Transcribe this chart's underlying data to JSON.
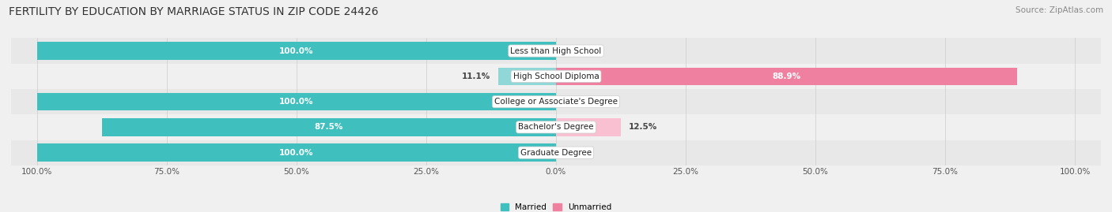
{
  "title": "FERTILITY BY EDUCATION BY MARRIAGE STATUS IN ZIP CODE 24426",
  "source": "Source: ZipAtlas.com",
  "categories": [
    "Less than High School",
    "High School Diploma",
    "College or Associate's Degree",
    "Bachelor's Degree",
    "Graduate Degree"
  ],
  "married": [
    100.0,
    11.1,
    100.0,
    87.5,
    100.0
  ],
  "unmarried": [
    0.0,
    88.9,
    0.0,
    12.5,
    0.0
  ],
  "married_color": "#40bfbf",
  "unmarried_color": "#f080a0",
  "married_light_color": "#90d8d8",
  "unmarried_light_color": "#f8c0d0",
  "bg_dark": "#e8e8e8",
  "bg_light": "#f0f0f0",
  "title_fontsize": 10,
  "source_fontsize": 7.5,
  "bar_label_fontsize": 7.5,
  "category_fontsize": 7.5,
  "axis_label_fontsize": 7.5,
  "figsize": [
    14.06,
    2.69
  ],
  "dpi": 100
}
